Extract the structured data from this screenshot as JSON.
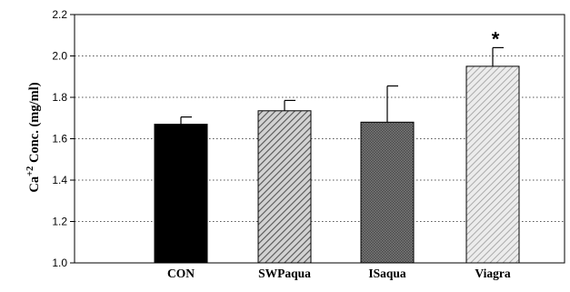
{
  "chart_data": {
    "type": "bar",
    "title": "",
    "xlabel": "",
    "ylabel_base": "Ca",
    "ylabel_sup": "+2",
    "ylabel_rest": " Conc. (mg/ml)",
    "ylim": [
      1.0,
      2.2
    ],
    "yticks": [
      1.0,
      1.2,
      1.4,
      1.6,
      1.8,
      2.0,
      2.2
    ],
    "ytick_labels": [
      "1.0",
      "1.2",
      "1.4",
      "1.6",
      "1.8",
      "2.0",
      "2.2"
    ],
    "grid": "horizontal dotted",
    "categories": [
      "CON",
      "SWPaqua",
      "ISaqua",
      "Viagra"
    ],
    "values": [
      1.67,
      1.735,
      1.68,
      1.95
    ],
    "errors": [
      0.035,
      0.05,
      0.175,
      0.09
    ],
    "bar_styles": [
      "solid-black",
      "diagonal-hatch-gray",
      "crosshatch-dark-gray",
      "diagonal-hatch-light"
    ],
    "annotations": [
      {
        "category": "Viagra",
        "text": "*"
      }
    ]
  }
}
